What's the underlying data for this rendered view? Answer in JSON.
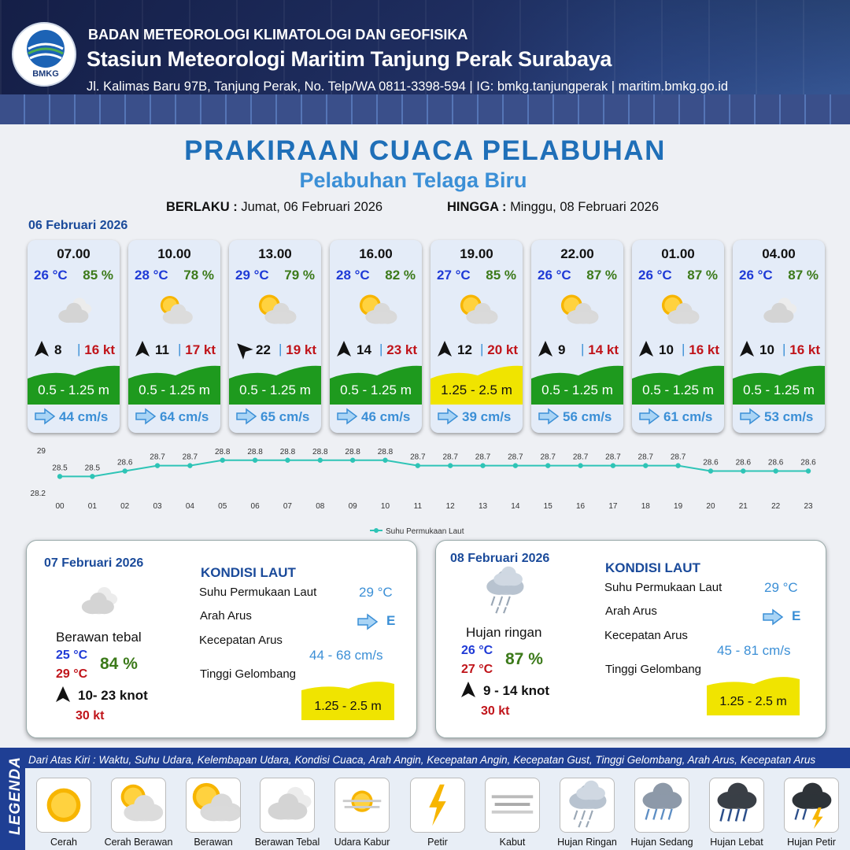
{
  "header": {
    "agency": "BADAN METEOROLOGI KLIMATOLOGI DAN GEOFISIKA",
    "station": "Stasiun Meteorologi Maritim Tanjung Perak Surabaya",
    "contact": "Jl. Kalimas Baru 97B, Tanjung Perak, No. Telp/WA 0811-3398-594 | IG: bmkg.tanjungperak | maritim.bmkg.go.id",
    "logo_text": "BMKG"
  },
  "title": "PRAKIRAAN CUACA PELABUHAN",
  "subtitle": "Pelabuhan Telaga Biru",
  "validity": {
    "from_label": "BERLAKU :",
    "from_value": "Jumat, 06 Februari 2026",
    "to_label": "HINGGA :",
    "to_value": "Minggu, 08 Februari 2026"
  },
  "day1_label": "06 Februari 2026",
  "forecasts": [
    {
      "time": "07.00",
      "temp": "26 °C",
      "humidity": "85 %",
      "icon": "berawan-tebal-icon",
      "wind_dir_deg": 90,
      "wind": "8",
      "sep": "|",
      "gust": "16 kt",
      "wave": "0.5 - 1.25 m",
      "wave_color": "#1e9a1e",
      "current": "44 cm/s"
    },
    {
      "time": "10.00",
      "temp": "28 °C",
      "humidity": "78 %",
      "icon": "cerah-berawan-icon",
      "wind_dir_deg": 90,
      "wind": "11",
      "sep": "|",
      "gust": "17 kt",
      "wave": "0.5 - 1.25 m",
      "wave_color": "#1e9a1e",
      "current": "64 cm/s"
    },
    {
      "time": "13.00",
      "temp": "29 °C",
      "humidity": "79 %",
      "icon": "berawan-icon",
      "wind_dir_deg": 45,
      "wind": "22",
      "sep": "|",
      "gust": "19 kt",
      "wave": "0.5 - 1.25 m",
      "wave_color": "#1e9a1e",
      "current": "65 cm/s"
    },
    {
      "time": "16.00",
      "temp": "28 °C",
      "humidity": "82 %",
      "icon": "berawan-icon",
      "wind_dir_deg": 90,
      "wind": "14",
      "sep": "|",
      "gust": "23 kt",
      "wave": "0.5 - 1.25 m",
      "wave_color": "#1e9a1e",
      "current": "46 cm/s"
    },
    {
      "time": "19.00",
      "temp": "27 °C",
      "humidity": "85 %",
      "icon": "berawan-icon",
      "wind_dir_deg": 90,
      "wind": "12",
      "sep": "|",
      "gust": "20 kt",
      "wave": "1.25 - 2.5 m",
      "wave_color": "#f0e400",
      "current": "39 cm/s"
    },
    {
      "time": "22.00",
      "temp": "26 °C",
      "humidity": "87 %",
      "icon": "berawan-icon",
      "wind_dir_deg": 90,
      "wind": "9",
      "sep": "|",
      "gust": "14 kt",
      "wave": "0.5 - 1.25 m",
      "wave_color": "#1e9a1e",
      "current": "56 cm/s"
    },
    {
      "time": "01.00",
      "temp": "26 °C",
      "humidity": "87 %",
      "icon": "berawan-icon",
      "wind_dir_deg": 90,
      "wind": "10",
      "sep": "|",
      "gust": "16 kt",
      "wave": "0.5 - 1.25 m",
      "wave_color": "#1e9a1e",
      "current": "61 cm/s"
    },
    {
      "time": "04.00",
      "temp": "26 °C",
      "humidity": "87 %",
      "icon": "berawan-tebal-icon",
      "wind_dir_deg": 90,
      "wind": "10",
      "sep": "|",
      "gust": "16 kt",
      "wave": "0.5 - 1.25 m",
      "wave_color": "#1e9a1e",
      "current": "53 cm/s"
    }
  ],
  "chart_data": {
    "type": "line",
    "x": [
      "00",
      "01",
      "02",
      "03",
      "04",
      "05",
      "06",
      "07",
      "08",
      "09",
      "10",
      "11",
      "12",
      "13",
      "14",
      "15",
      "16",
      "17",
      "18",
      "19",
      "20",
      "21",
      "22",
      "23"
    ],
    "series": [
      {
        "name": "Suhu Permukaan Laut",
        "values": [
          28.5,
          28.5,
          28.6,
          28.7,
          28.7,
          28.8,
          28.8,
          28.8,
          28.8,
          28.8,
          28.8,
          28.7,
          28.7,
          28.7,
          28.7,
          28.7,
          28.7,
          28.7,
          28.7,
          28.7,
          28.6,
          28.6,
          28.6,
          28.6
        ],
        "color": "#2ec4b6"
      }
    ],
    "ylim": [
      28.2,
      29
    ],
    "yticks": [
      "29",
      "28.2"
    ],
    "legend": "bottom-center"
  },
  "days": [
    {
      "date": "07 Februari 2026",
      "icon": "berawan-tebal-icon",
      "condition": "Berawan tebal",
      "temp_min": "25 °C",
      "temp_max": "29 °C",
      "humidity": "84 %",
      "wind": "10- 23 knot",
      "gust": "30 kt",
      "sea_title": "KONDISI LAUT",
      "sst_label": "Suhu Permukaan Laut",
      "sst": "29 °C",
      "dir_label": "Arah Arus",
      "dir": "E",
      "speed_label": "Kecepatan Arus",
      "speed": "44  - 68 cm/s",
      "wave_label": "Tinggi Gelombang",
      "wave": "1.25 - 2.5 m"
    },
    {
      "date": "08 Februari 2026",
      "icon": "hujan-ringan-icon",
      "condition": "Hujan ringan",
      "temp_min": "26 °C",
      "temp_max": "27 °C",
      "humidity": "87 %",
      "wind": "9  - 14 knot",
      "gust": "30 kt",
      "sea_title": "KONDISI LAUT",
      "sst_label": "Suhu Permukaan Laut",
      "sst": "29 °C",
      "dir_label": "Arah Arus",
      "dir": "E",
      "speed_label": "Kecepatan Arus",
      "speed": "45 - 81 cm/s",
      "wave_label": "Tinggi Gelombang",
      "wave": "1.25 - 2.5 m"
    }
  ],
  "legend": {
    "title": "LEGENDA",
    "description": "Dari Atas Kiri : Waktu, Suhu Udara, Kelembapan Udara, Kondisi Cuaca, Arah Angin, Kecepatan Angin, Kecepatan Gust, Tinggi Gelombang, Arah Arus, Kecepatan Arus",
    "items": [
      {
        "label": "Cerah",
        "icon": "cerah-icon"
      },
      {
        "label": "Cerah Berawan",
        "icon": "cerah-berawan-icon"
      },
      {
        "label": "Berawan",
        "icon": "berawan-icon"
      },
      {
        "label": "Berawan Tebal",
        "icon": "berawan-tebal-icon"
      },
      {
        "label": "Udara Kabur",
        "icon": "udara-kabur-icon"
      },
      {
        "label": "Petir",
        "icon": "petir-icon"
      },
      {
        "label": "Kabut",
        "icon": "kabut-icon"
      },
      {
        "label": "Hujan Ringan",
        "icon": "hujan-ringan-icon"
      },
      {
        "label": "Hujan Sedang",
        "icon": "hujan-sedang-icon"
      },
      {
        "label": "Hujan Lebat",
        "icon": "hujan-lebat-icon"
      },
      {
        "label": "Hujan Petir",
        "icon": "hujan-petir-icon"
      }
    ]
  }
}
